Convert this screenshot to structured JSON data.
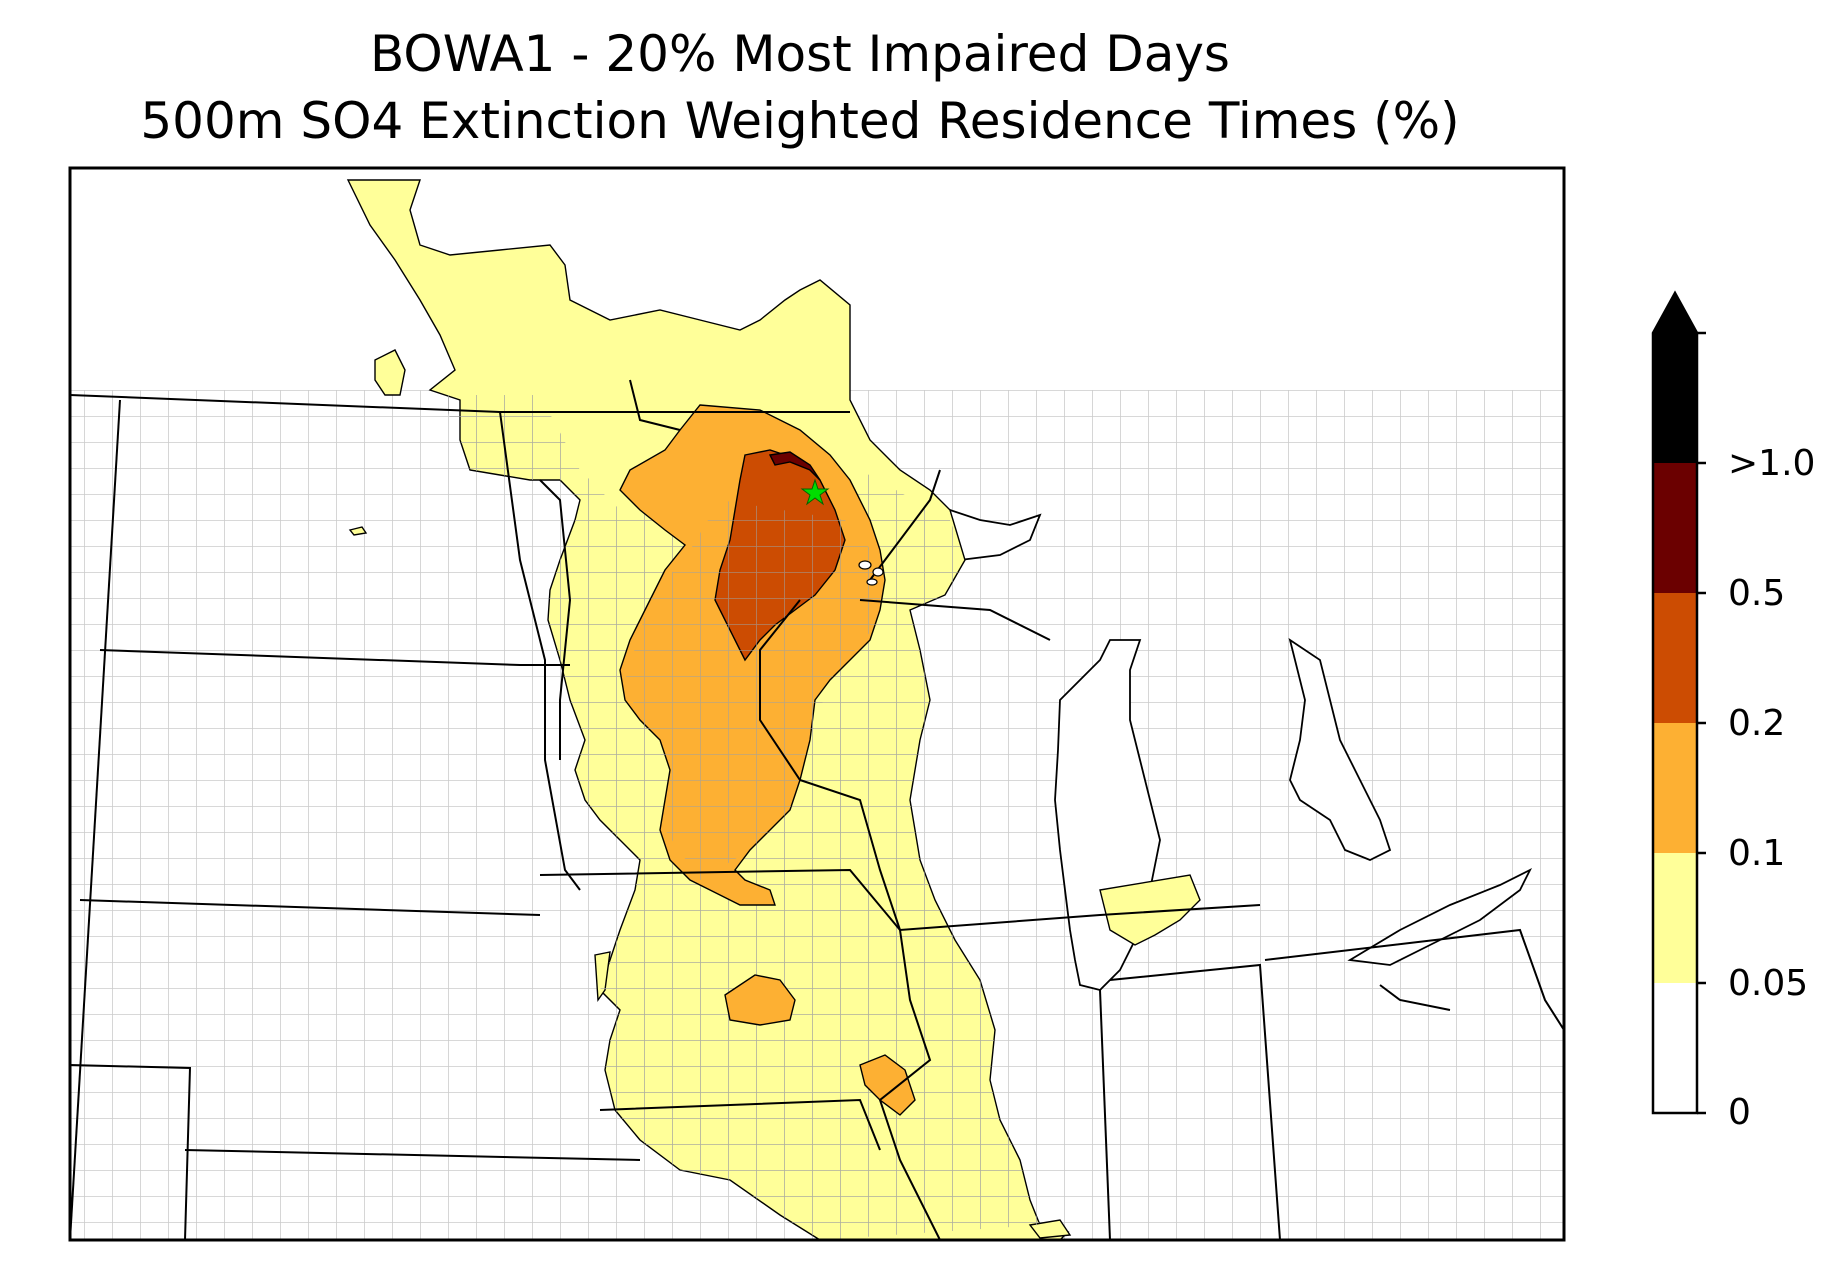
{
  "title": {
    "line1": "BOWA1 - 20% Most Impaired Days",
    "line2": "500m SO4 Extinction Weighted Residence Times (%)"
  },
  "colorbar": {
    "levels": [
      {
        "label": "0",
        "color": "#ffffff"
      },
      {
        "label": "0.05",
        "color": "#ffff99"
      },
      {
        "label": "0.1",
        "color": "#fdb033"
      },
      {
        "label": "0.2",
        "color": "#cc4c02"
      },
      {
        "label": "0.5",
        "color": "#6b0000"
      },
      {
        "label": ">1.0",
        "color": "#000000"
      }
    ],
    "extend": "max"
  },
  "map": {
    "site_marker": {
      "name": "BOWA1",
      "color": "#00dd00",
      "shape": "star"
    },
    "state_border_color": "#000000",
    "county_border_color": "#a0a0a0"
  }
}
